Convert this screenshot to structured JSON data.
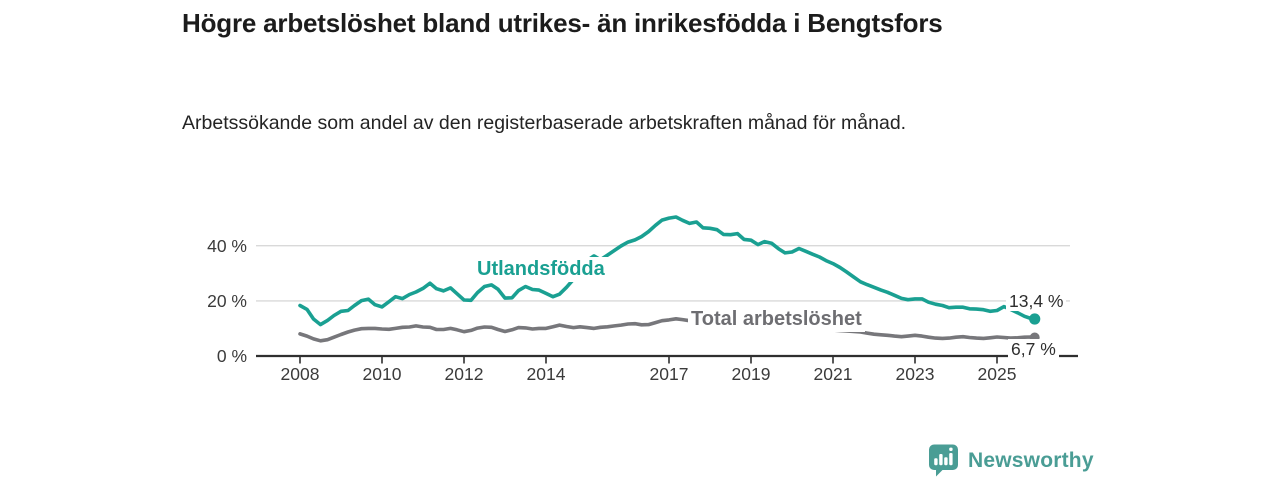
{
  "header": {
    "title": "Högre arbetslöshet bland utrikes- än inrikesfödda i Bengtsfors",
    "subtitle": "Arbetssökande som andel av den registerbaserade arbetskraften månad för månad."
  },
  "chart_data": {
    "type": "line",
    "title": "Högre arbetslöshet bland utrikes- än inrikesfödda i Bengtsfors",
    "subtitle": "Arbetssökande som andel av den registerbaserade arbetskraften månad för månad.",
    "unit": "%",
    "grid": "horizontal-only",
    "legend_position": "inline-labels",
    "x_axis": {
      "ticks": [
        2008,
        2010,
        2012,
        2014,
        2017,
        2019,
        2021,
        2023,
        2025
      ],
      "range": [
        2007.6,
        2026.4
      ]
    },
    "y_axis": {
      "tick_values": [
        0,
        20,
        40
      ],
      "tick_labels": [
        "0 %",
        "20 %",
        "40 %"
      ],
      "range": [
        0,
        54
      ]
    },
    "series": [
      {
        "name": "Utlandsfödda",
        "color": "#1aa092",
        "end_label": "13,4 %",
        "end_value": 13.4,
        "points": [
          [
            2008.0,
            18.3
          ],
          [
            2008.17,
            16.9
          ],
          [
            2008.33,
            13.4
          ],
          [
            2008.5,
            11.4
          ],
          [
            2008.67,
            12.9
          ],
          [
            2008.83,
            14.7
          ],
          [
            2009.0,
            16.2
          ],
          [
            2009.17,
            16.5
          ],
          [
            2009.33,
            18.3
          ],
          [
            2009.5,
            20.1
          ],
          [
            2009.67,
            20.6
          ],
          [
            2009.83,
            18.6
          ],
          [
            2010.0,
            17.8
          ],
          [
            2010.17,
            19.7
          ],
          [
            2010.33,
            21.5
          ],
          [
            2010.5,
            20.8
          ],
          [
            2010.67,
            22.3
          ],
          [
            2010.83,
            23.2
          ],
          [
            2011.0,
            24.5
          ],
          [
            2011.17,
            26.4
          ],
          [
            2011.33,
            24.4
          ],
          [
            2011.5,
            23.6
          ],
          [
            2011.67,
            24.7
          ],
          [
            2011.83,
            22.6
          ],
          [
            2012.0,
            20.3
          ],
          [
            2012.17,
            20.2
          ],
          [
            2012.33,
            23.0
          ],
          [
            2012.5,
            25.2
          ],
          [
            2012.67,
            25.8
          ],
          [
            2012.83,
            24.2
          ],
          [
            2013.0,
            21.0
          ],
          [
            2013.17,
            21.1
          ],
          [
            2013.33,
            23.7
          ],
          [
            2013.5,
            25.2
          ],
          [
            2013.67,
            24.1
          ],
          [
            2013.83,
            23.9
          ],
          [
            2014.0,
            22.7
          ],
          [
            2014.17,
            21.5
          ],
          [
            2014.33,
            22.4
          ],
          [
            2014.5,
            24.9
          ],
          [
            2014.67,
            27.8
          ],
          [
            2014.83,
            31.1
          ],
          [
            2015.0,
            34.6
          ],
          [
            2015.17,
            36.3
          ],
          [
            2015.33,
            34.9
          ],
          [
            2015.5,
            36.6
          ],
          [
            2015.67,
            38.3
          ],
          [
            2015.83,
            39.9
          ],
          [
            2016.0,
            41.3
          ],
          [
            2016.17,
            42.1
          ],
          [
            2016.33,
            43.3
          ],
          [
            2016.5,
            45.1
          ],
          [
            2016.67,
            47.4
          ],
          [
            2016.83,
            49.3
          ],
          [
            2017.0,
            50.0
          ],
          [
            2017.17,
            50.4
          ],
          [
            2017.33,
            49.2
          ],
          [
            2017.5,
            48.1
          ],
          [
            2017.67,
            48.6
          ],
          [
            2017.83,
            46.5
          ],
          [
            2018.0,
            46.3
          ],
          [
            2018.17,
            45.8
          ],
          [
            2018.33,
            44.1
          ],
          [
            2018.5,
            44.0
          ],
          [
            2018.67,
            44.4
          ],
          [
            2018.83,
            42.3
          ],
          [
            2019.0,
            42.0
          ],
          [
            2019.17,
            40.4
          ],
          [
            2019.33,
            41.5
          ],
          [
            2019.5,
            40.9
          ],
          [
            2019.67,
            38.9
          ],
          [
            2019.83,
            37.4
          ],
          [
            2020.0,
            37.7
          ],
          [
            2020.17,
            39.0
          ],
          [
            2020.33,
            38.0
          ],
          [
            2020.5,
            36.9
          ],
          [
            2020.67,
            35.9
          ],
          [
            2020.83,
            34.6
          ],
          [
            2021.0,
            33.5
          ],
          [
            2021.17,
            32.1
          ],
          [
            2021.33,
            30.5
          ],
          [
            2021.5,
            28.7
          ],
          [
            2021.67,
            26.9
          ],
          [
            2021.83,
            25.9
          ],
          [
            2022.0,
            24.9
          ],
          [
            2022.17,
            23.9
          ],
          [
            2022.33,
            23.1
          ],
          [
            2022.5,
            22.0
          ],
          [
            2022.67,
            20.9
          ],
          [
            2022.83,
            20.4
          ],
          [
            2023.0,
            20.7
          ],
          [
            2023.17,
            20.7
          ],
          [
            2023.33,
            19.5
          ],
          [
            2023.5,
            18.8
          ],
          [
            2023.67,
            18.3
          ],
          [
            2023.83,
            17.5
          ],
          [
            2024.0,
            17.7
          ],
          [
            2024.17,
            17.7
          ],
          [
            2024.33,
            17.1
          ],
          [
            2024.5,
            17.0
          ],
          [
            2024.67,
            16.8
          ],
          [
            2024.83,
            16.2
          ],
          [
            2025.0,
            16.5
          ],
          [
            2025.17,
            17.9
          ],
          [
            2025.33,
            16.9
          ],
          [
            2025.5,
            15.7
          ],
          [
            2025.67,
            14.4
          ],
          [
            2025.83,
            13.6
          ],
          [
            2025.92,
            13.4
          ]
        ]
      },
      {
        "name": "Total arbetslöshet",
        "color": "#77777b",
        "end_label": "6,7 %",
        "end_value": 6.7,
        "points": [
          [
            2008.0,
            8.0
          ],
          [
            2008.17,
            7.2
          ],
          [
            2008.33,
            6.2
          ],
          [
            2008.5,
            5.5
          ],
          [
            2008.67,
            5.9
          ],
          [
            2008.83,
            6.8
          ],
          [
            2009.0,
            7.8
          ],
          [
            2009.17,
            8.7
          ],
          [
            2009.33,
            9.4
          ],
          [
            2009.5,
            9.9
          ],
          [
            2009.67,
            10.0
          ],
          [
            2009.83,
            10.0
          ],
          [
            2010.0,
            9.8
          ],
          [
            2010.17,
            9.7
          ],
          [
            2010.33,
            10.0
          ],
          [
            2010.5,
            10.4
          ],
          [
            2010.67,
            10.5
          ],
          [
            2010.83,
            10.9
          ],
          [
            2011.0,
            10.5
          ],
          [
            2011.17,
            10.4
          ],
          [
            2011.33,
            9.6
          ],
          [
            2011.5,
            9.6
          ],
          [
            2011.67,
            10.0
          ],
          [
            2011.83,
            9.5
          ],
          [
            2012.0,
            8.8
          ],
          [
            2012.17,
            9.3
          ],
          [
            2012.33,
            10.1
          ],
          [
            2012.5,
            10.5
          ],
          [
            2012.67,
            10.4
          ],
          [
            2012.83,
            9.6
          ],
          [
            2013.0,
            8.9
          ],
          [
            2013.17,
            9.5
          ],
          [
            2013.33,
            10.3
          ],
          [
            2013.5,
            10.2
          ],
          [
            2013.67,
            9.8
          ],
          [
            2013.83,
            10.0
          ],
          [
            2014.0,
            10.0
          ],
          [
            2014.17,
            10.6
          ],
          [
            2014.33,
            11.2
          ],
          [
            2014.5,
            10.7
          ],
          [
            2014.67,
            10.3
          ],
          [
            2014.83,
            10.6
          ],
          [
            2015.0,
            10.3
          ],
          [
            2015.17,
            10.0
          ],
          [
            2015.33,
            10.4
          ],
          [
            2015.5,
            10.6
          ],
          [
            2015.67,
            10.9
          ],
          [
            2015.83,
            11.2
          ],
          [
            2016.0,
            11.6
          ],
          [
            2016.17,
            11.7
          ],
          [
            2016.33,
            11.3
          ],
          [
            2016.5,
            11.4
          ],
          [
            2016.67,
            12.1
          ],
          [
            2016.83,
            12.8
          ],
          [
            2017.0,
            13.1
          ],
          [
            2017.17,
            13.5
          ],
          [
            2017.33,
            13.2
          ],
          [
            2017.5,
            12.8
          ],
          [
            2017.67,
            12.4
          ],
          [
            2017.83,
            12.2
          ],
          [
            2018.0,
            12.0
          ],
          [
            2018.17,
            11.9
          ],
          [
            2018.33,
            11.7
          ],
          [
            2018.5,
            11.4
          ],
          [
            2018.67,
            11.2
          ],
          [
            2018.83,
            11.1
          ],
          [
            2019.0,
            10.9
          ],
          [
            2019.17,
            10.7
          ],
          [
            2019.33,
            10.6
          ],
          [
            2019.5,
            10.3
          ],
          [
            2019.67,
            10.2
          ],
          [
            2019.83,
            10.1
          ],
          [
            2020.0,
            10.0
          ],
          [
            2020.17,
            10.2
          ],
          [
            2020.33,
            10.1
          ],
          [
            2020.5,
            10.0
          ],
          [
            2020.67,
            9.8
          ],
          [
            2020.83,
            9.6
          ],
          [
            2021.0,
            9.4
          ],
          [
            2021.17,
            9.2
          ],
          [
            2021.33,
            9.1
          ],
          [
            2021.5,
            8.9
          ],
          [
            2021.67,
            8.7
          ],
          [
            2021.83,
            8.3
          ],
          [
            2022.0,
            7.9
          ],
          [
            2022.17,
            7.7
          ],
          [
            2022.33,
            7.5
          ],
          [
            2022.5,
            7.2
          ],
          [
            2022.67,
            7.0
          ],
          [
            2022.83,
            7.2
          ],
          [
            2023.0,
            7.5
          ],
          [
            2023.17,
            7.2
          ],
          [
            2023.33,
            6.8
          ],
          [
            2023.5,
            6.5
          ],
          [
            2023.67,
            6.4
          ],
          [
            2023.83,
            6.5
          ],
          [
            2024.0,
            6.8
          ],
          [
            2024.17,
            7.0
          ],
          [
            2024.33,
            6.7
          ],
          [
            2024.5,
            6.5
          ],
          [
            2024.67,
            6.4
          ],
          [
            2024.83,
            6.6
          ],
          [
            2025.0,
            6.9
          ],
          [
            2025.17,
            6.7
          ],
          [
            2025.33,
            6.5
          ],
          [
            2025.5,
            6.6
          ],
          [
            2025.67,
            6.8
          ],
          [
            2025.83,
            6.9
          ],
          [
            2025.92,
            6.7
          ]
        ]
      }
    ]
  },
  "footer": {
    "brand": "Newsworthy",
    "brand_color": "#4a9d95",
    "logo_icon": "newsworthy-speech-bubble-bar-chart-icon"
  }
}
